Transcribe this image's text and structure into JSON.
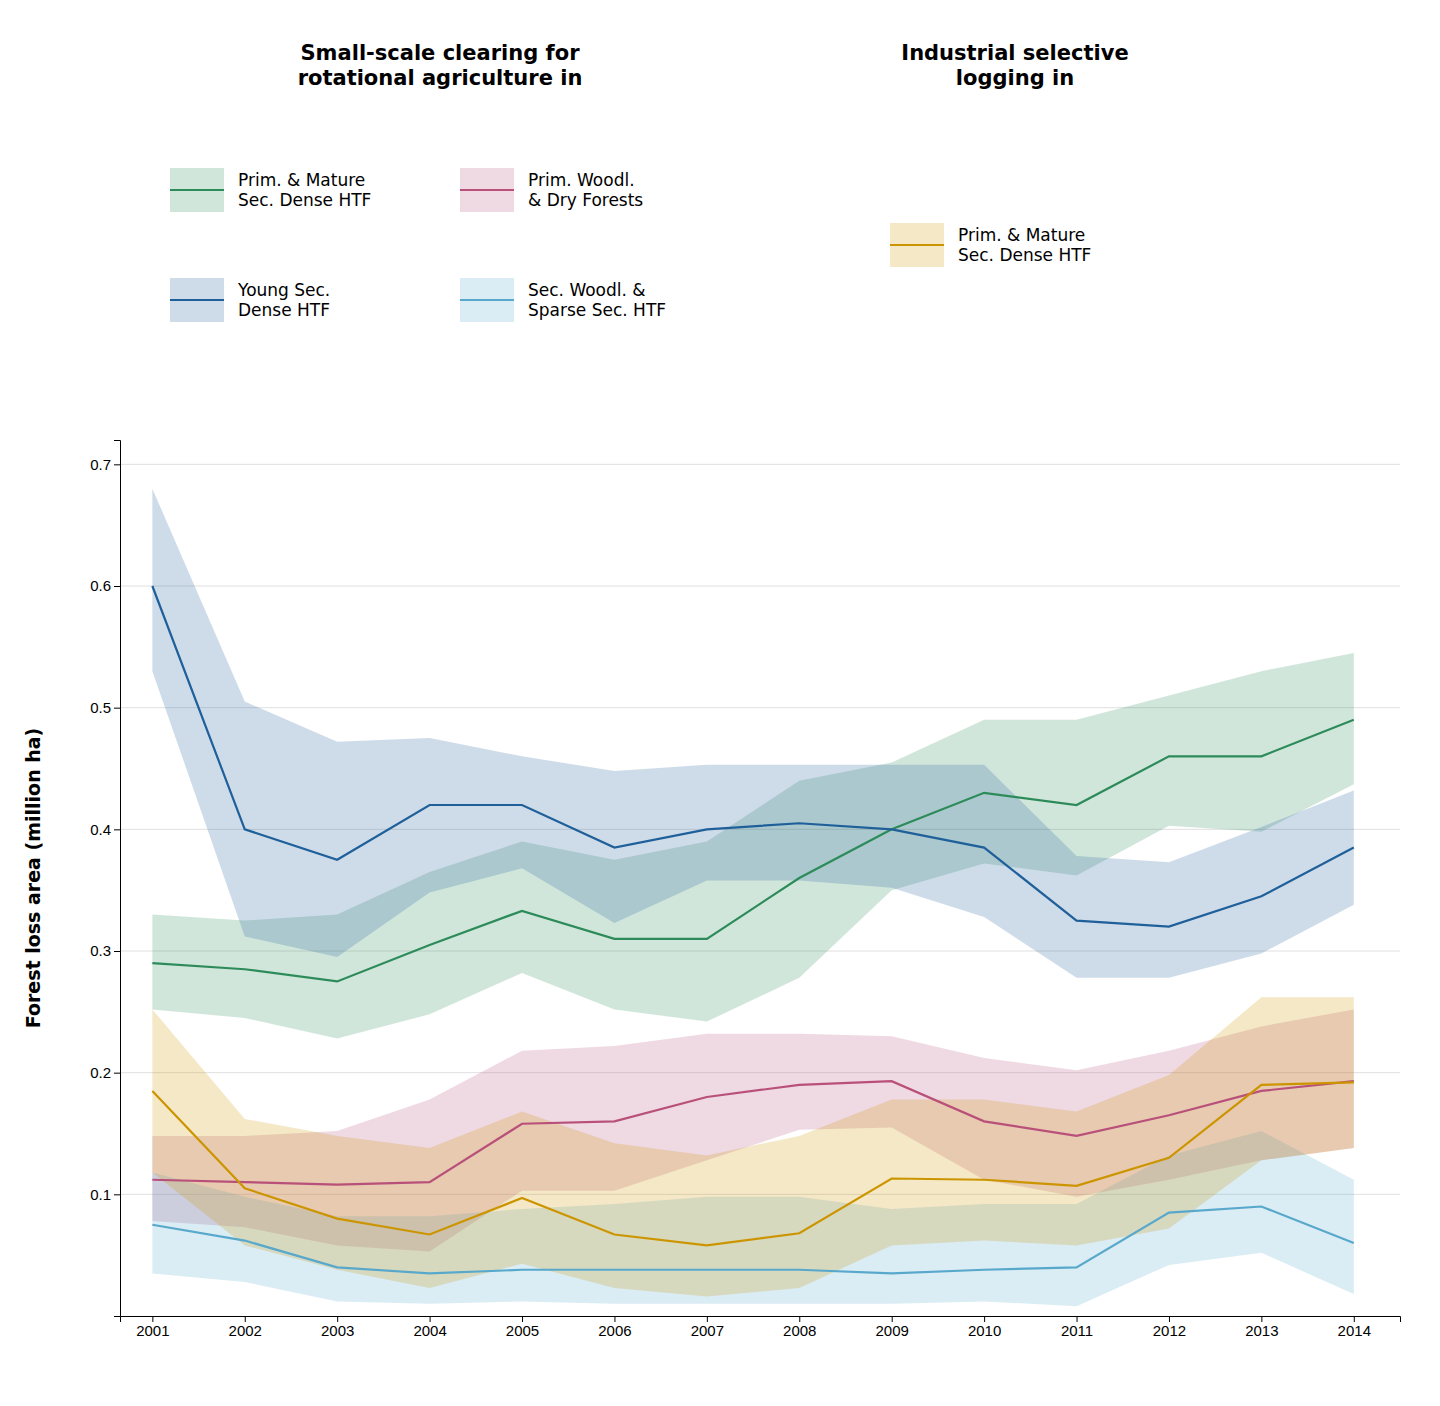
{
  "chart_data": {
    "type": "line",
    "ylabel": "Forest loss area (million ha)",
    "annotations": [
      "Small-scale clearing for\nrotational agriculture in",
      "Industrial selective\nlogging in"
    ],
    "legend": "top",
    "grid": true,
    "x": [
      2001,
      2002,
      2003,
      2004,
      2005,
      2006,
      2007,
      2008,
      2009,
      2010,
      2011,
      2012,
      2013,
      2014
    ],
    "xlim": [
      2000.65,
      2014.5
    ],
    "xticks": [
      2001,
      2002,
      2003,
      2004,
      2005,
      2006,
      2007,
      2008,
      2009,
      2010,
      2011,
      2012,
      2013,
      2014
    ],
    "ylim": [
      0.0,
      0.72
    ],
    "yticks": [
      0.1,
      0.2,
      0.3,
      0.4,
      0.5,
      0.6,
      0.7
    ],
    "series": [
      {
        "name": "Prim. & Mature\nSec. Dense HTF",
        "color": "#2d8b5a",
        "group": 0,
        "values": [
          0.29,
          0.285,
          0.275,
          0.305,
          0.333,
          0.31,
          0.31,
          0.36,
          0.4,
          0.43,
          0.42,
          0.46,
          0.46,
          0.49
        ],
        "upper": [
          0.33,
          0.325,
          0.33,
          0.365,
          0.39,
          0.375,
          0.39,
          0.44,
          0.455,
          0.49,
          0.49,
          0.51,
          0.53,
          0.545
        ],
        "lower": [
          0.252,
          0.245,
          0.228,
          0.248,
          0.282,
          0.252,
          0.242,
          0.278,
          0.35,
          0.372,
          0.362,
          0.403,
          0.398,
          0.437
        ]
      },
      {
        "name": "Young Sec.\nDense HTF",
        "color": "#1f5f9a",
        "group": 0,
        "values": [
          0.6,
          0.4,
          0.375,
          0.42,
          0.42,
          0.385,
          0.4,
          0.405,
          0.4,
          0.385,
          0.325,
          0.32,
          0.345,
          0.385
        ],
        "upper": [
          0.68,
          0.505,
          0.472,
          0.475,
          0.46,
          0.448,
          0.453,
          0.453,
          0.453,
          0.453,
          0.378,
          0.373,
          0.402,
          0.432
        ],
        "lower": [
          0.53,
          0.312,
          0.295,
          0.348,
          0.368,
          0.323,
          0.358,
          0.358,
          0.352,
          0.328,
          0.278,
          0.278,
          0.298,
          0.338
        ]
      },
      {
        "name": "Prim. Woodl.\n& Dry Forests",
        "color": "#b8507a",
        "group": 0,
        "values": [
          0.112,
          0.11,
          0.108,
          0.11,
          0.158,
          0.16,
          0.18,
          0.19,
          0.193,
          0.16,
          0.148,
          0.165,
          0.185,
          0.193
        ],
        "upper": [
          0.148,
          0.148,
          0.152,
          0.178,
          0.218,
          0.222,
          0.232,
          0.232,
          0.23,
          0.212,
          0.202,
          0.218,
          0.238,
          0.252
        ],
        "lower": [
          0.078,
          0.073,
          0.058,
          0.053,
          0.103,
          0.103,
          0.128,
          0.153,
          0.155,
          0.112,
          0.098,
          0.112,
          0.128,
          0.138
        ]
      },
      {
        "name": "Sec. Woodl. &\nSparse Sec. HTF",
        "color": "#58a8cc",
        "group": 0,
        "values": [
          0.075,
          0.062,
          0.04,
          0.035,
          0.038,
          0.038,
          0.038,
          0.038,
          0.035,
          0.038,
          0.04,
          0.085,
          0.09,
          0.06
        ],
        "upper": [
          0.118,
          0.098,
          0.082,
          0.082,
          0.088,
          0.092,
          0.098,
          0.098,
          0.088,
          0.092,
          0.092,
          0.132,
          0.152,
          0.112
        ],
        "lower": [
          0.035,
          0.028,
          0.012,
          0.01,
          0.012,
          0.01,
          0.01,
          0.01,
          0.01,
          0.012,
          0.008,
          0.042,
          0.052,
          0.018
        ]
      },
      {
        "name": "Prim. & Mature\nSec. Dense HTF",
        "color": "#cc9500",
        "group": 1,
        "values": [
          0.185,
          0.105,
          0.08,
          0.067,
          0.097,
          0.067,
          0.058,
          0.068,
          0.113,
          0.112,
          0.107,
          0.13,
          0.19,
          0.192
        ],
        "upper": [
          0.252,
          0.162,
          0.148,
          0.138,
          0.168,
          0.142,
          0.132,
          0.148,
          0.178,
          0.178,
          0.168,
          0.198,
          0.262,
          0.262
        ],
        "lower": [
          0.118,
          0.058,
          0.038,
          0.023,
          0.043,
          0.023,
          0.016,
          0.023,
          0.058,
          0.062,
          0.058,
          0.072,
          0.128,
          0.138
        ]
      }
    ]
  }
}
